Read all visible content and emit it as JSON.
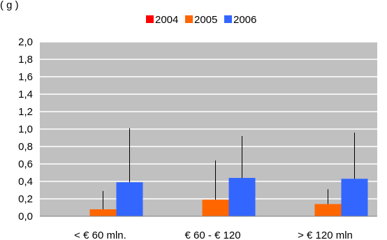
{
  "chart_data": {
    "type": "bar",
    "title_fragment": "(                                   g                                          )",
    "categories": [
      "< € 60 mln.",
      "€ 60 - € 120",
      "> € 120 mln"
    ],
    "series": [
      {
        "name": "2004",
        "color": "#ff0000",
        "values": [
          0.0,
          0.0,
          0.0
        ],
        "error_upper": [
          0.0,
          0.0,
          0.0
        ]
      },
      {
        "name": "2005",
        "color": "#ff6600",
        "values": [
          0.08,
          0.19,
          0.14
        ],
        "error_upper": [
          0.29,
          0.64,
          0.31
        ]
      },
      {
        "name": "2006",
        "color": "#3366ff",
        "values": [
          0.39,
          0.44,
          0.43
        ],
        "error_upper": [
          1.01,
          0.92,
          0.96
        ]
      }
    ],
    "ylim": [
      0,
      2.0
    ],
    "yticks": [
      "0,0",
      "0,2",
      "0,4",
      "0,6",
      "0,8",
      "1,0",
      "1,2",
      "1,4",
      "1,6",
      "1,8",
      "2,0"
    ],
    "grid": true,
    "plot_background": "#c0c0c0",
    "legend_position": "top-center"
  }
}
